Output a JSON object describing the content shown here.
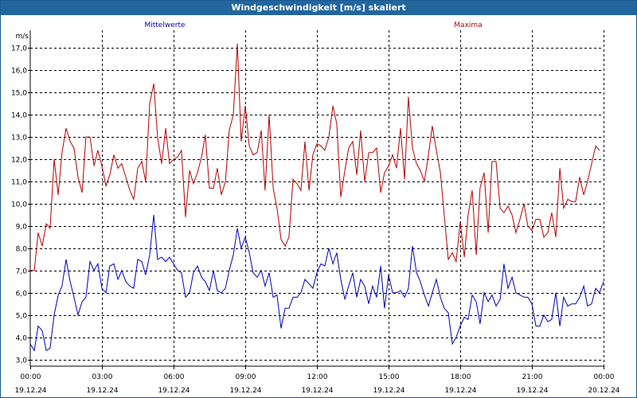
{
  "window": {
    "title": "Windgeschwindigkeit [m/s] skaliert"
  },
  "colors": {
    "title_bar": "#22669e",
    "mean_series": "#0000b4",
    "max_series": "#b40000",
    "grid": "#000000"
  },
  "chart_data": {
    "type": "line",
    "title": "Windgeschwindigkeit [m/s] skaliert",
    "ylabel": "m/s",
    "ylim": [
      2.7,
      17.8
    ],
    "y_ticks": [
      "3,0",
      "4,0",
      "5,0",
      "6,0",
      "7,0",
      "8,0",
      "9,0",
      "10,0",
      "11,0",
      "12,0",
      "13,0",
      "14,0",
      "15,0",
      "16,0",
      "17,0"
    ],
    "x_unit": "hours since 19.12.24 00:00",
    "xlim": [
      0,
      24
    ],
    "x_ticks": [
      {
        "time": "00:00",
        "date": "19.12.24"
      },
      {
        "time": "03:00",
        "date": "19.12.24"
      },
      {
        "time": "06:00",
        "date": "19.12.24"
      },
      {
        "time": "09:00",
        "date": "19.12.24"
      },
      {
        "time": "12:00",
        "date": "19.12.24"
      },
      {
        "time": "15:00",
        "date": "19.12.24"
      },
      {
        "time": "18:00",
        "date": "19.12.24"
      },
      {
        "time": "21:00",
        "date": "19.12.24"
      },
      {
        "time": "00:00",
        "date": "20.12.24"
      }
    ],
    "grid": true,
    "legend_position": "top",
    "series": [
      {
        "name": "Mittelwerte",
        "color": "#0000b4",
        "points": [
          [
            0.0,
            3.7
          ],
          [
            0.17,
            3.4
          ],
          [
            0.33,
            4.5
          ],
          [
            0.5,
            4.3
          ],
          [
            0.67,
            3.4
          ],
          [
            0.83,
            3.5
          ],
          [
            1.0,
            5.0
          ],
          [
            1.17,
            5.9
          ],
          [
            1.33,
            6.3
          ],
          [
            1.5,
            7.5
          ],
          [
            1.67,
            6.5
          ],
          [
            1.83,
            5.8
          ],
          [
            2.0,
            5.0
          ],
          [
            2.17,
            5.6
          ],
          [
            2.33,
            5.8
          ],
          [
            2.5,
            7.4
          ],
          [
            2.67,
            7.0
          ],
          [
            2.83,
            7.3
          ],
          [
            3.0,
            6.2
          ],
          [
            3.17,
            6.0
          ],
          [
            3.33,
            7.2
          ],
          [
            3.5,
            7.3
          ],
          [
            3.67,
            6.6
          ],
          [
            3.83,
            7.0
          ],
          [
            4.0,
            6.5
          ],
          [
            4.17,
            6.3
          ],
          [
            4.33,
            6.2
          ],
          [
            4.5,
            7.5
          ],
          [
            4.67,
            7.4
          ],
          [
            4.83,
            6.8
          ],
          [
            5.0,
            7.7
          ],
          [
            5.17,
            9.5
          ],
          [
            5.33,
            7.5
          ],
          [
            5.5,
            7.6
          ],
          [
            5.67,
            7.4
          ],
          [
            5.83,
            7.6
          ],
          [
            6.0,
            7.3
          ],
          [
            6.17,
            7.0
          ],
          [
            6.33,
            6.9
          ],
          [
            6.5,
            5.8
          ],
          [
            6.67,
            6.0
          ],
          [
            6.83,
            6.9
          ],
          [
            7.0,
            7.2
          ],
          [
            7.17,
            6.7
          ],
          [
            7.33,
            6.5
          ],
          [
            7.5,
            6.1
          ],
          [
            7.67,
            7.0
          ],
          [
            7.83,
            6.1
          ],
          [
            8.0,
            6.0
          ],
          [
            8.17,
            6.2
          ],
          [
            8.33,
            7.0
          ],
          [
            8.5,
            7.7
          ],
          [
            8.67,
            8.9
          ],
          [
            8.83,
            8.0
          ],
          [
            9.0,
            8.5
          ],
          [
            9.17,
            7.8
          ],
          [
            9.33,
            6.9
          ],
          [
            9.5,
            6.7
          ],
          [
            9.67,
            7.0
          ],
          [
            9.83,
            6.3
          ],
          [
            10.0,
            6.9
          ],
          [
            10.17,
            5.8
          ],
          [
            10.33,
            5.9
          ],
          [
            10.5,
            4.4
          ],
          [
            10.67,
            5.3
          ],
          [
            10.83,
            5.3
          ],
          [
            11.0,
            5.8
          ],
          [
            11.17,
            5.8
          ],
          [
            11.33,
            6.0
          ],
          [
            11.5,
            6.6
          ],
          [
            11.67,
            6.4
          ],
          [
            11.83,
            6.2
          ],
          [
            12.0,
            6.9
          ],
          [
            12.17,
            7.3
          ],
          [
            12.33,
            7.2
          ],
          [
            12.5,
            8.0
          ],
          [
            12.67,
            7.3
          ],
          [
            12.83,
            7.8
          ],
          [
            13.0,
            6.6
          ],
          [
            13.17,
            5.7
          ],
          [
            13.33,
            6.3
          ],
          [
            13.5,
            6.9
          ],
          [
            13.67,
            5.8
          ],
          [
            13.83,
            6.6
          ],
          [
            14.0,
            6.3
          ],
          [
            14.17,
            5.5
          ],
          [
            14.33,
            6.3
          ],
          [
            14.5,
            5.8
          ],
          [
            14.67,
            7.2
          ],
          [
            14.83,
            5.3
          ],
          [
            15.0,
            6.8
          ],
          [
            15.17,
            6.0
          ],
          [
            15.33,
            6.0
          ],
          [
            15.5,
            6.1
          ],
          [
            15.67,
            5.8
          ],
          [
            15.83,
            6.2
          ],
          [
            16.0,
            8.1
          ],
          [
            16.17,
            6.9
          ],
          [
            16.33,
            6.5
          ],
          [
            16.5,
            5.9
          ],
          [
            16.67,
            5.4
          ],
          [
            16.83,
            6.0
          ],
          [
            17.0,
            6.6
          ],
          [
            17.17,
            5.8
          ],
          [
            17.33,
            5.3
          ],
          [
            17.5,
            5.1
          ],
          [
            17.67,
            3.7
          ],
          [
            17.83,
            4.0
          ],
          [
            18.0,
            4.5
          ],
          [
            18.17,
            4.9
          ],
          [
            18.33,
            4.8
          ],
          [
            18.5,
            5.9
          ],
          [
            18.67,
            5.6
          ],
          [
            18.83,
            4.6
          ],
          [
            19.0,
            6.0
          ],
          [
            19.17,
            5.6
          ],
          [
            19.33,
            5.9
          ],
          [
            19.5,
            5.4
          ],
          [
            19.67,
            5.7
          ],
          [
            19.83,
            7.3
          ],
          [
            20.0,
            6.2
          ],
          [
            20.17,
            6.7
          ],
          [
            20.33,
            6.0
          ],
          [
            20.5,
            5.9
          ],
          [
            20.67,
            5.8
          ],
          [
            20.83,
            5.8
          ],
          [
            21.0,
            5.5
          ],
          [
            21.17,
            4.5
          ],
          [
            21.33,
            4.5
          ],
          [
            21.5,
            5.0
          ],
          [
            21.67,
            4.7
          ],
          [
            21.83,
            4.8
          ],
          [
            22.0,
            6.0
          ],
          [
            22.17,
            4.5
          ],
          [
            22.33,
            5.8
          ],
          [
            22.5,
            5.4
          ],
          [
            22.67,
            5.5
          ],
          [
            22.83,
            5.5
          ],
          [
            23.0,
            5.8
          ],
          [
            23.17,
            6.3
          ],
          [
            23.33,
            5.4
          ],
          [
            23.5,
            5.5
          ],
          [
            23.67,
            6.2
          ],
          [
            23.83,
            6.0
          ],
          [
            24.0,
            6.5
          ]
        ]
      },
      {
        "name": "Maxima",
        "color": "#b40000",
        "points": [
          [
            0.0,
            7.0
          ],
          [
            0.17,
            7.0
          ],
          [
            0.33,
            8.7
          ],
          [
            0.5,
            8.1
          ],
          [
            0.67,
            9.1
          ],
          [
            0.83,
            8.9
          ],
          [
            1.0,
            12.0
          ],
          [
            1.17,
            10.4
          ],
          [
            1.33,
            12.3
          ],
          [
            1.5,
            13.4
          ],
          [
            1.67,
            12.8
          ],
          [
            1.83,
            12.5
          ],
          [
            2.0,
            11.2
          ],
          [
            2.17,
            10.5
          ],
          [
            2.33,
            13.0
          ],
          [
            2.5,
            13.0
          ],
          [
            2.67,
            11.7
          ],
          [
            2.83,
            12.4
          ],
          [
            3.0,
            11.7
          ],
          [
            3.17,
            10.8
          ],
          [
            3.33,
            11.3
          ],
          [
            3.5,
            12.2
          ],
          [
            3.67,
            11.6
          ],
          [
            3.83,
            11.8
          ],
          [
            4.0,
            11.2
          ],
          [
            4.17,
            10.6
          ],
          [
            4.33,
            10.2
          ],
          [
            4.5,
            11.6
          ],
          [
            4.67,
            11.9
          ],
          [
            4.83,
            11.0
          ],
          [
            5.0,
            14.5
          ],
          [
            5.17,
            15.4
          ],
          [
            5.33,
            13.0
          ],
          [
            5.5,
            11.8
          ],
          [
            5.67,
            13.4
          ],
          [
            5.83,
            11.8
          ],
          [
            6.0,
            12.0
          ],
          [
            6.17,
            12.1
          ],
          [
            6.33,
            12.4
          ],
          [
            6.5,
            9.4
          ],
          [
            6.67,
            11.5
          ],
          [
            6.83,
            10.9
          ],
          [
            7.0,
            11.4
          ],
          [
            7.17,
            12.1
          ],
          [
            7.33,
            13.1
          ],
          [
            7.5,
            10.7
          ],
          [
            7.67,
            10.7
          ],
          [
            7.83,
            11.6
          ],
          [
            8.0,
            10.4
          ],
          [
            8.17,
            11.0
          ],
          [
            8.33,
            13.3
          ],
          [
            8.5,
            14.0
          ],
          [
            8.67,
            17.2
          ],
          [
            8.83,
            12.8
          ],
          [
            9.0,
            14.4
          ],
          [
            9.17,
            12.6
          ],
          [
            9.33,
            12.2
          ],
          [
            9.5,
            12.3
          ],
          [
            9.67,
            13.3
          ],
          [
            9.83,
            10.6
          ],
          [
            10.0,
            14.0
          ],
          [
            10.17,
            10.7
          ],
          [
            10.33,
            9.8
          ],
          [
            10.5,
            8.4
          ],
          [
            10.67,
            8.1
          ],
          [
            10.83,
            8.5
          ],
          [
            11.0,
            11.1
          ],
          [
            11.17,
            10.9
          ],
          [
            11.33,
            10.6
          ],
          [
            11.5,
            12.8
          ],
          [
            11.67,
            10.6
          ],
          [
            11.83,
            12.2
          ],
          [
            12.0,
            12.7
          ],
          [
            12.17,
            12.6
          ],
          [
            12.33,
            12.4
          ],
          [
            12.5,
            13.0
          ],
          [
            12.67,
            14.4
          ],
          [
            12.83,
            13.6
          ],
          [
            13.0,
            10.3
          ],
          [
            13.17,
            11.5
          ],
          [
            13.33,
            12.5
          ],
          [
            13.5,
            12.8
          ],
          [
            13.67,
            11.3
          ],
          [
            13.83,
            13.3
          ],
          [
            14.0,
            11.0
          ],
          [
            14.17,
            12.3
          ],
          [
            14.33,
            12.3
          ],
          [
            14.5,
            12.5
          ],
          [
            14.67,
            10.5
          ],
          [
            14.83,
            11.4
          ],
          [
            15.0,
            11.7
          ],
          [
            15.17,
            12.2
          ],
          [
            15.33,
            11.6
          ],
          [
            15.5,
            13.4
          ],
          [
            15.67,
            11.1
          ],
          [
            15.83,
            14.8
          ],
          [
            16.0,
            12.5
          ],
          [
            16.17,
            11.8
          ],
          [
            16.33,
            11.5
          ],
          [
            16.5,
            11.0
          ],
          [
            16.67,
            12.2
          ],
          [
            16.83,
            13.5
          ],
          [
            17.0,
            12.4
          ],
          [
            17.17,
            11.4
          ],
          [
            17.33,
            9.5
          ],
          [
            17.5,
            7.5
          ],
          [
            17.67,
            7.8
          ],
          [
            17.83,
            7.4
          ],
          [
            18.0,
            9.2
          ],
          [
            18.17,
            7.6
          ],
          [
            18.33,
            9.5
          ],
          [
            18.5,
            10.6
          ],
          [
            18.67,
            7.7
          ],
          [
            18.83,
            10.7
          ],
          [
            19.0,
            11.4
          ],
          [
            19.17,
            8.7
          ],
          [
            19.33,
            11.9
          ],
          [
            19.5,
            11.9
          ],
          [
            19.67,
            9.8
          ],
          [
            19.83,
            9.6
          ],
          [
            20.0,
            9.9
          ],
          [
            20.17,
            9.5
          ],
          [
            20.33,
            8.7
          ],
          [
            20.5,
            9.3
          ],
          [
            20.67,
            10.0
          ],
          [
            20.83,
            9.0
          ],
          [
            21.0,
            8.8
          ],
          [
            21.17,
            9.3
          ],
          [
            21.33,
            9.3
          ],
          [
            21.5,
            8.5
          ],
          [
            21.67,
            8.7
          ],
          [
            21.83,
            9.6
          ],
          [
            22.0,
            8.5
          ],
          [
            22.17,
            11.6
          ],
          [
            22.33,
            9.8
          ],
          [
            22.5,
            10.2
          ],
          [
            22.67,
            10.1
          ],
          [
            22.83,
            10.1
          ],
          [
            23.0,
            11.2
          ],
          [
            23.17,
            10.4
          ],
          [
            23.33,
            11.0
          ],
          [
            23.5,
            11.8
          ],
          [
            23.67,
            12.6
          ],
          [
            23.83,
            12.4
          ]
        ]
      }
    ]
  }
}
